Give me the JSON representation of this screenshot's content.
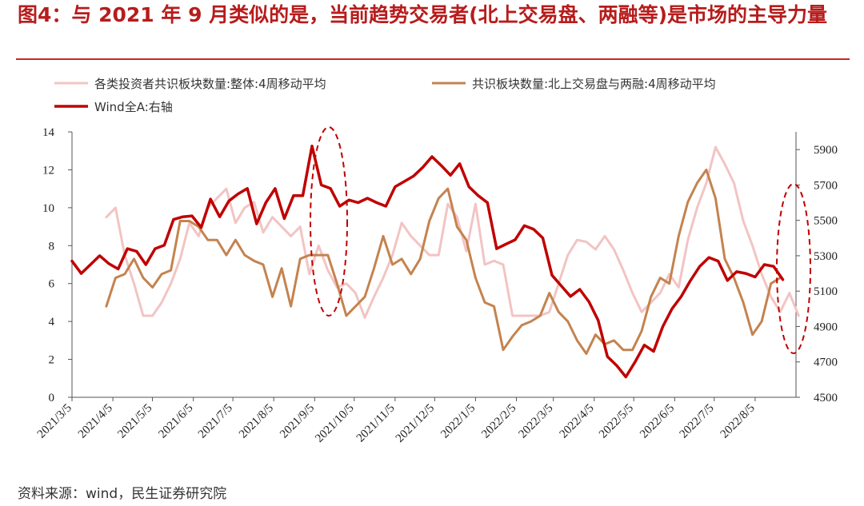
{
  "page": {
    "title": "图4：与 2021 年 9 月类似的是，当前趋势交易者(北上交易盘、两融等)是市场的主导力量",
    "source": "资料来源：wind，民生证券研究院"
  },
  "chart_data": {
    "type": "line",
    "title": "",
    "xlabel": "",
    "ylabel": "",
    "x_tick_labels": [
      "2021/3/5",
      "2021/4/5",
      "2021/5/5",
      "2021/6/5",
      "2021/7/5",
      "2021/8/5",
      "2021/9/5",
      "2021/10/5",
      "2021/11/5",
      "2021/12/5",
      "2022/1/5",
      "2022/2/5",
      "2022/3/5",
      "2022/4/5",
      "2022/5/5",
      "2022/6/5",
      "2022/7/5",
      "2022/8/5"
    ],
    "x_tick_dates": [
      "2021-03-05",
      "2021-04-05",
      "2021-05-05",
      "2021-06-05",
      "2021-07-05",
      "2021-08-05",
      "2021-09-05",
      "2021-10-05",
      "2021-11-05",
      "2021-12-05",
      "2022-01-05",
      "2022-02-05",
      "2022-03-05",
      "2022-04-05",
      "2022-05-05",
      "2022-06-05",
      "2022-07-05",
      "2022-08-05"
    ],
    "xlim": [
      "2021-03-05",
      "2022-09-05"
    ],
    "ylim_left": [
      0,
      14
    ],
    "yticks_left": [
      0,
      2,
      4,
      6,
      8,
      10,
      12,
      14
    ],
    "ylim_right": [
      4500,
      6000
    ],
    "yticks_right": [
      4500,
      4700,
      4900,
      5100,
      5300,
      5500,
      5700,
      5900
    ],
    "grid": false,
    "legend_position": "top",
    "series": [
      {
        "name": "各类投资者共识板块数量:整体:4周移动平均",
        "axis": "left",
        "color": "#f2c4c4",
        "width": 3,
        "points": [
          [
            "2021-03-31",
            9.5
          ],
          [
            "2021-04-07",
            10.0
          ],
          [
            "2021-04-14",
            7.5
          ],
          [
            "2021-04-21",
            6.0
          ],
          [
            "2021-04-28",
            4.3
          ],
          [
            "2021-05-05",
            4.3
          ],
          [
            "2021-05-12",
            5.0
          ],
          [
            "2021-05-19",
            6.0
          ],
          [
            "2021-05-26",
            7.3
          ],
          [
            "2021-06-02",
            9.2
          ],
          [
            "2021-06-09",
            8.5
          ],
          [
            "2021-06-16",
            10.0
          ],
          [
            "2021-06-23",
            10.5
          ],
          [
            "2021-06-30",
            11.0
          ],
          [
            "2021-07-07",
            9.2
          ],
          [
            "2021-07-14",
            10.0
          ],
          [
            "2021-07-21",
            10.3
          ],
          [
            "2021-07-28",
            8.7
          ],
          [
            "2021-08-04",
            9.5
          ],
          [
            "2021-08-11",
            9.0
          ],
          [
            "2021-08-18",
            8.5
          ],
          [
            "2021-08-25",
            9.0
          ],
          [
            "2021-09-01",
            6.5
          ],
          [
            "2021-09-08",
            8.0
          ],
          [
            "2021-09-15",
            6.7
          ],
          [
            "2021-09-22",
            5.8
          ],
          [
            "2021-09-29",
            6.0
          ],
          [
            "2021-10-06",
            5.5
          ],
          [
            "2021-10-13",
            4.2
          ],
          [
            "2021-10-20",
            5.3
          ],
          [
            "2021-10-27",
            6.3
          ],
          [
            "2021-11-03",
            7.5
          ],
          [
            "2021-11-10",
            9.2
          ],
          [
            "2021-11-17",
            8.5
          ],
          [
            "2021-11-24",
            8.0
          ],
          [
            "2021-12-01",
            7.5
          ],
          [
            "2021-12-08",
            7.5
          ],
          [
            "2021-12-15",
            10.2
          ],
          [
            "2021-12-22",
            9.5
          ],
          [
            "2021-12-29",
            7.7
          ],
          [
            "2022-01-05",
            10.2
          ],
          [
            "2022-01-12",
            7.0
          ],
          [
            "2022-01-19",
            7.2
          ],
          [
            "2022-01-26",
            7.0
          ],
          [
            "2022-02-02",
            4.3
          ],
          [
            "2022-02-09",
            4.3
          ],
          [
            "2022-02-16",
            4.3
          ],
          [
            "2022-02-23",
            4.3
          ],
          [
            "2022-03-02",
            4.5
          ],
          [
            "2022-03-09",
            6.0
          ],
          [
            "2022-03-16",
            7.5
          ],
          [
            "2022-03-23",
            8.3
          ],
          [
            "2022-03-30",
            8.2
          ],
          [
            "2022-04-06",
            7.8
          ],
          [
            "2022-04-13",
            8.5
          ],
          [
            "2022-04-20",
            7.8
          ],
          [
            "2022-04-27",
            6.7
          ],
          [
            "2022-05-04",
            5.5
          ],
          [
            "2022-05-11",
            4.5
          ],
          [
            "2022-05-18",
            5.0
          ],
          [
            "2022-05-25",
            5.5
          ],
          [
            "2022-06-01",
            6.5
          ],
          [
            "2022-06-08",
            5.8
          ],
          [
            "2022-06-15",
            8.3
          ],
          [
            "2022-06-22",
            10.0
          ],
          [
            "2022-06-29",
            11.3
          ],
          [
            "2022-07-06",
            13.2
          ],
          [
            "2022-07-13",
            12.3
          ],
          [
            "2022-07-20",
            11.3
          ],
          [
            "2022-07-27",
            9.3
          ],
          [
            "2022-08-03",
            8.0
          ],
          [
            "2022-08-10",
            6.5
          ],
          [
            "2022-08-17",
            5.3
          ],
          [
            "2022-08-24",
            4.5
          ],
          [
            "2022-08-31",
            5.5
          ],
          [
            "2022-09-07",
            4.3
          ]
        ]
      },
      {
        "name": "共识板块数量:北上交易盘与两融:4周移动平均",
        "axis": "left",
        "color": "#c4834f",
        "width": 3,
        "points": [
          [
            "2021-03-31",
            4.8
          ],
          [
            "2021-04-07",
            6.3
          ],
          [
            "2021-04-14",
            6.5
          ],
          [
            "2021-04-21",
            7.3
          ],
          [
            "2021-04-28",
            6.3
          ],
          [
            "2021-05-05",
            5.8
          ],
          [
            "2021-05-12",
            6.5
          ],
          [
            "2021-05-19",
            6.7
          ],
          [
            "2021-05-26",
            9.3
          ],
          [
            "2021-06-02",
            9.3
          ],
          [
            "2021-06-09",
            9.0
          ],
          [
            "2021-06-16",
            8.3
          ],
          [
            "2021-06-23",
            8.3
          ],
          [
            "2021-06-30",
            7.5
          ],
          [
            "2021-07-07",
            8.3
          ],
          [
            "2021-07-14",
            7.5
          ],
          [
            "2021-07-21",
            7.2
          ],
          [
            "2021-07-28",
            7.0
          ],
          [
            "2021-08-04",
            5.3
          ],
          [
            "2021-08-11",
            6.8
          ],
          [
            "2021-08-18",
            4.8
          ],
          [
            "2021-08-25",
            7.3
          ],
          [
            "2021-09-01",
            7.5
          ],
          [
            "2021-09-08",
            7.5
          ],
          [
            "2021-09-15",
            7.5
          ],
          [
            "2021-09-22",
            6.0
          ],
          [
            "2021-09-29",
            4.3
          ],
          [
            "2021-10-06",
            4.8
          ],
          [
            "2021-10-13",
            5.3
          ],
          [
            "2021-10-20",
            6.8
          ],
          [
            "2021-10-27",
            8.5
          ],
          [
            "2021-11-03",
            7.0
          ],
          [
            "2021-11-10",
            7.3
          ],
          [
            "2021-11-17",
            6.5
          ],
          [
            "2021-11-24",
            7.3
          ],
          [
            "2021-12-01",
            9.3
          ],
          [
            "2021-12-08",
            10.5
          ],
          [
            "2021-12-15",
            11.0
          ],
          [
            "2021-12-22",
            9.0
          ],
          [
            "2021-12-29",
            8.3
          ],
          [
            "2022-01-05",
            6.3
          ],
          [
            "2022-01-12",
            5.0
          ],
          [
            "2022-01-19",
            4.8
          ],
          [
            "2022-01-26",
            2.5
          ],
          [
            "2022-02-02",
            3.2
          ],
          [
            "2022-02-09",
            3.8
          ],
          [
            "2022-02-16",
            4.0
          ],
          [
            "2022-02-23",
            4.3
          ],
          [
            "2022-03-02",
            5.5
          ],
          [
            "2022-03-09",
            4.5
          ],
          [
            "2022-03-16",
            4.0
          ],
          [
            "2022-03-23",
            3.0
          ],
          [
            "2022-03-30",
            2.3
          ],
          [
            "2022-04-06",
            3.3
          ],
          [
            "2022-04-13",
            2.8
          ],
          [
            "2022-04-20",
            3.0
          ],
          [
            "2022-04-27",
            2.5
          ],
          [
            "2022-05-04",
            2.5
          ],
          [
            "2022-05-11",
            3.5
          ],
          [
            "2022-05-18",
            5.3
          ],
          [
            "2022-05-25",
            6.3
          ],
          [
            "2022-06-01",
            6.0
          ],
          [
            "2022-06-08",
            8.5
          ],
          [
            "2022-06-15",
            10.3
          ],
          [
            "2022-06-22",
            11.3
          ],
          [
            "2022-06-29",
            12.0
          ],
          [
            "2022-07-06",
            10.5
          ],
          [
            "2022-07-13",
            7.3
          ],
          [
            "2022-07-20",
            6.3
          ],
          [
            "2022-07-27",
            5.0
          ],
          [
            "2022-08-03",
            3.3
          ],
          [
            "2022-08-10",
            4.0
          ],
          [
            "2022-08-17",
            6.0
          ],
          [
            "2022-08-24",
            6.3
          ]
        ]
      },
      {
        "name": "Wind全A:右轴",
        "axis": "right",
        "color": "#c00000",
        "width": 3.5,
        "points": [
          [
            "2021-03-05",
            5270
          ],
          [
            "2021-03-12",
            5200
          ],
          [
            "2021-03-19",
            5250
          ],
          [
            "2021-03-26",
            5300
          ],
          [
            "2021-04-02",
            5255
          ],
          [
            "2021-04-09",
            5225
          ],
          [
            "2021-04-16",
            5340
          ],
          [
            "2021-04-23",
            5325
          ],
          [
            "2021-04-30",
            5250
          ],
          [
            "2021-05-07",
            5340
          ],
          [
            "2021-05-14",
            5360
          ],
          [
            "2021-05-21",
            5505
          ],
          [
            "2021-05-28",
            5520
          ],
          [
            "2021-06-04",
            5525
          ],
          [
            "2021-06-11",
            5460
          ],
          [
            "2021-06-18",
            5620
          ],
          [
            "2021-06-25",
            5520
          ],
          [
            "2021-07-02",
            5610
          ],
          [
            "2021-07-09",
            5650
          ],
          [
            "2021-07-16",
            5680
          ],
          [
            "2021-07-23",
            5480
          ],
          [
            "2021-07-30",
            5600
          ],
          [
            "2021-08-06",
            5680
          ],
          [
            "2021-08-13",
            5510
          ],
          [
            "2021-08-20",
            5640
          ],
          [
            "2021-08-27",
            5640
          ],
          [
            "2021-09-03",
            5920
          ],
          [
            "2021-09-10",
            5700
          ],
          [
            "2021-09-17",
            5680
          ],
          [
            "2021-09-24",
            5580
          ],
          [
            "2021-10-01",
            5615
          ],
          [
            "2021-10-08",
            5600
          ],
          [
            "2021-10-15",
            5625
          ],
          [
            "2021-10-22",
            5600
          ],
          [
            "2021-10-29",
            5580
          ],
          [
            "2021-11-05",
            5690
          ],
          [
            "2021-11-12",
            5720
          ],
          [
            "2021-11-19",
            5750
          ],
          [
            "2021-11-26",
            5800
          ],
          [
            "2021-12-03",
            5860
          ],
          [
            "2021-12-10",
            5810
          ],
          [
            "2021-12-17",
            5755
          ],
          [
            "2021-12-24",
            5820
          ],
          [
            "2021-12-31",
            5690
          ],
          [
            "2022-01-07",
            5640
          ],
          [
            "2022-01-14",
            5600
          ],
          [
            "2022-01-21",
            5340
          ],
          [
            "2022-01-28",
            5365
          ],
          [
            "2022-02-04",
            5390
          ],
          [
            "2022-02-11",
            5470
          ],
          [
            "2022-02-18",
            5450
          ],
          [
            "2022-02-25",
            5400
          ],
          [
            "2022-03-04",
            5190
          ],
          [
            "2022-03-11",
            5130
          ],
          [
            "2022-03-18",
            5070
          ],
          [
            "2022-03-25",
            5110
          ],
          [
            "2022-04-01",
            5040
          ],
          [
            "2022-04-08",
            4935
          ],
          [
            "2022-04-15",
            4730
          ],
          [
            "2022-04-22",
            4680
          ],
          [
            "2022-04-29",
            4615
          ],
          [
            "2022-05-06",
            4700
          ],
          [
            "2022-05-13",
            4795
          ],
          [
            "2022-05-20",
            4760
          ],
          [
            "2022-05-27",
            4900
          ],
          [
            "2022-06-03",
            5000
          ],
          [
            "2022-06-10",
            5070
          ],
          [
            "2022-06-17",
            5160
          ],
          [
            "2022-06-24",
            5240
          ],
          [
            "2022-07-01",
            5290
          ],
          [
            "2022-07-08",
            5270
          ],
          [
            "2022-07-15",
            5160
          ],
          [
            "2022-07-22",
            5210
          ],
          [
            "2022-07-29",
            5200
          ],
          [
            "2022-08-05",
            5180
          ],
          [
            "2022-08-12",
            5250
          ],
          [
            "2022-08-19",
            5240
          ],
          [
            "2022-08-26",
            5165
          ]
        ]
      }
    ],
    "annotations": [
      {
        "type": "dashed-ellipse",
        "color": "#c00000",
        "around": "2021-09"
      },
      {
        "type": "dashed-ellipse",
        "color": "#c00000",
        "around": "2022-08"
      }
    ]
  }
}
